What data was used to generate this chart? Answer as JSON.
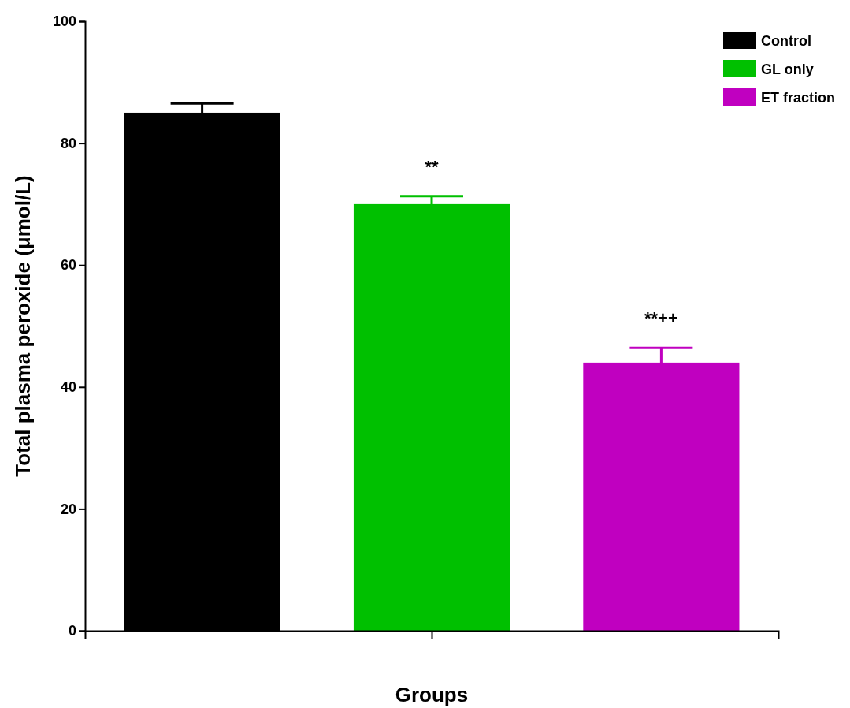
{
  "chart_data": {
    "type": "bar",
    "xlabel": "Groups",
    "ylabel": "Total plasma peroxide (μmol/L)",
    "categories": [
      null,
      null,
      null
    ],
    "series": [
      {
        "name": "Control",
        "color": "#000000",
        "values": [
          85,
          null,
          null
        ],
        "errors": [
          1.5,
          null,
          null
        ]
      },
      {
        "name": "GL only",
        "color": "#00c000",
        "values": [
          null,
          70,
          null
        ],
        "errors": [
          null,
          1.3,
          null
        ]
      },
      {
        "name": "ET fraction",
        "color": "#c000c0",
        "values": [
          null,
          null,
          44
        ],
        "errors": [
          null,
          null,
          2.4
        ]
      }
    ],
    "ylim": [
      0,
      100
    ],
    "yticks": [
      0,
      20,
      40,
      60,
      80,
      100
    ],
    "grid": false,
    "legend": "top right",
    "annotations": [
      "**",
      "**++"
    ]
  }
}
